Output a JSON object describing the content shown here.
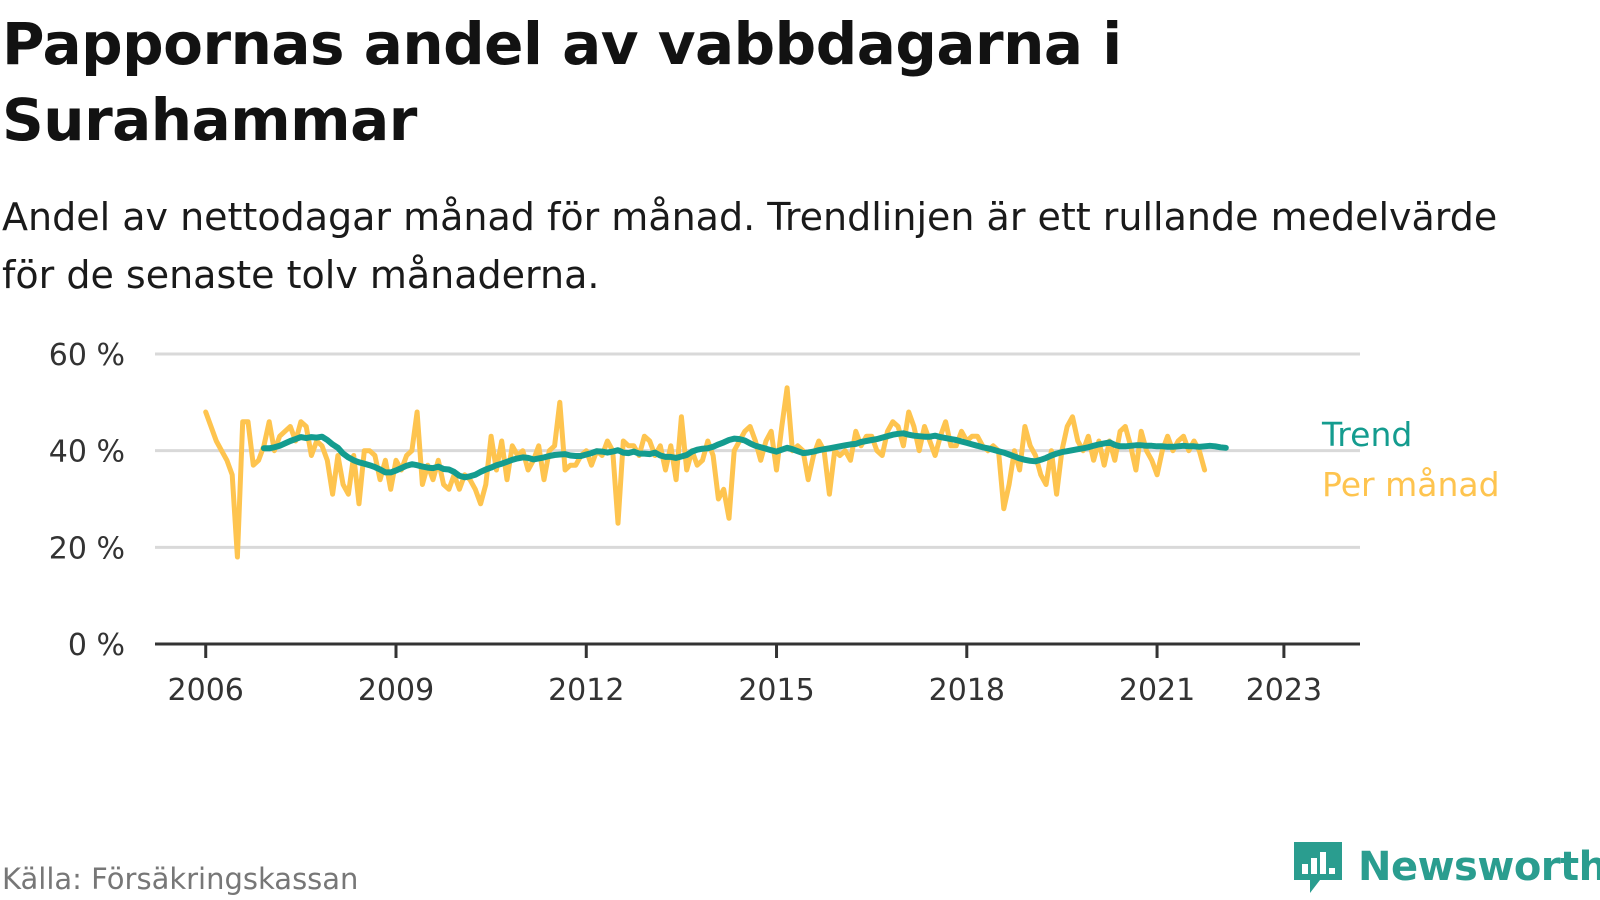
{
  "title": "Pappornas andel av vabbdagarna i Surahammar",
  "subtitle": "Andel av nettodagar månad för månad. Trendlinjen är ett rullande medelvärde för de senaste tolv månaderna.",
  "source": "Källa: Försäkringskassan",
  "brand": {
    "name": "Newsworthy",
    "icon": "newsworthy-logo-icon"
  },
  "colors": {
    "trend": "#149c8f",
    "monthly": "#fec44f",
    "grid": "#d9d9d9",
    "axis": "#333333"
  },
  "chart_data": {
    "type": "line",
    "title": "Pappornas andel av vabbdagarna i Surahammar",
    "xlabel": "",
    "ylabel": "",
    "ylim": [
      0,
      60
    ],
    "xlim": [
      2005.2,
      2024.2
    ],
    "yticks": [
      0,
      20,
      40,
      60
    ],
    "ytick_labels": [
      "0 %",
      "20 %",
      "40 %",
      "60 %"
    ],
    "xticks": [
      2006,
      2009,
      2012,
      2015,
      2018,
      2021,
      2023
    ],
    "xtick_labels": [
      "2006",
      "2009",
      "2012",
      "2015",
      "2018",
      "2021",
      "2023"
    ],
    "grid": true,
    "legend": "inline-right",
    "x_start": "2006-01",
    "series": [
      {
        "name": "Per månad",
        "start": "2006-01",
        "values": [
          48,
          45,
          42,
          40,
          38,
          35,
          18,
          46,
          46,
          37,
          38,
          41,
          46,
          40,
          43,
          44,
          45,
          42,
          46,
          45,
          39,
          42,
          41,
          38,
          31,
          39,
          33,
          31,
          39,
          29,
          40,
          40,
          39,
          34,
          38,
          32,
          38,
          36,
          39,
          40,
          48,
          33,
          37,
          34,
          38,
          33,
          32,
          35,
          32,
          35,
          34,
          32,
          29,
          33,
          43,
          36,
          42,
          34,
          41,
          39,
          40,
          36,
          38,
          41,
          34,
          40,
          41,
          50,
          36,
          37,
          37,
          39,
          40,
          37,
          40,
          39,
          42,
          40,
          25,
          42,
          41,
          41,
          39,
          43,
          42,
          39,
          41,
          36,
          41,
          34,
          47,
          36,
          40,
          37,
          38,
          42,
          39,
          30,
          32,
          26,
          40,
          42,
          44,
          45,
          42,
          38,
          42,
          44,
          36,
          45,
          53,
          40,
          41,
          40,
          34,
          39,
          42,
          40,
          31,
          40,
          39,
          40,
          38,
          44,
          41,
          43,
          43,
          40,
          39,
          44,
          46,
          45,
          41,
          48,
          45,
          40,
          45,
          42,
          39,
          43,
          46,
          41,
          41,
          44,
          42,
          43,
          43,
          41,
          40,
          41,
          40,
          28,
          33,
          40,
          36,
          45,
          41,
          39,
          35,
          33,
          40,
          31,
          40,
          45,
          47,
          42,
          40,
          43,
          38,
          42,
          37,
          42,
          38,
          44,
          45,
          41,
          36,
          44,
          40,
          38,
          35,
          40,
          43,
          40,
          42,
          43,
          40,
          42,
          40,
          36
        ],
        "color": "#fec44f"
      },
      {
        "name": "Trend",
        "start": "2006-12",
        "values": [
          40.5,
          40.5,
          40.7,
          41.0,
          41.5,
          42.0,
          42.4,
          42.8,
          42.6,
          42.8,
          42.7,
          42.9,
          42.2,
          41.3,
          40.6,
          39.4,
          38.6,
          38.0,
          37.6,
          37.3,
          37.0,
          36.6,
          36.1,
          35.5,
          35.5,
          35.9,
          36.4,
          36.9,
          37.2,
          37.0,
          36.7,
          36.5,
          36.4,
          36.7,
          36.2,
          36.1,
          35.6,
          34.8,
          34.5,
          34.7,
          35.0,
          35.6,
          36.1,
          36.5,
          37.0,
          37.3,
          37.7,
          38.1,
          38.4,
          38.6,
          38.5,
          38.2,
          38.4,
          38.6,
          38.9,
          39.1,
          39.2,
          39.3,
          39.0,
          38.9,
          38.9,
          39.2,
          39.5,
          39.9,
          39.8,
          39.6,
          39.8,
          40.1,
          39.6,
          39.5,
          39.8,
          39.4,
          39.4,
          39.3,
          39.6,
          39.0,
          38.7,
          38.7,
          38.5,
          38.8,
          39.1,
          39.8,
          40.2,
          40.4,
          40.5,
          40.8,
          41.3,
          41.7,
          42.2,
          42.5,
          42.4,
          42.1,
          41.5,
          41.0,
          40.7,
          40.4,
          40.1,
          39.8,
          40.2,
          40.6,
          40.3,
          39.9,
          39.5,
          39.6,
          39.8,
          40.1,
          40.3,
          40.5,
          40.7,
          40.9,
          41.1,
          41.3,
          41.4,
          41.8,
          42.0,
          42.2,
          42.4,
          42.7,
          43.0,
          43.3,
          43.5,
          43.6,
          43.3,
          43.1,
          43.0,
          42.9,
          42.9,
          43.1,
          42.8,
          42.6,
          42.4,
          42.2,
          41.9,
          41.6,
          41.3,
          41.0,
          40.7,
          40.5,
          40.2,
          39.9,
          39.6,
          39.2,
          38.8,
          38.4,
          38.1,
          37.9,
          37.8,
          38.1,
          38.5,
          39.0,
          39.4,
          39.7,
          39.9,
          40.1,
          40.3,
          40.5,
          40.7,
          41.0,
          41.3,
          41.5,
          41.7,
          41.2,
          40.9,
          40.9,
          41.0,
          41.1,
          41.1,
          41.0,
          41.0,
          40.9,
          40.9,
          40.8,
          40.8,
          40.9,
          41.0,
          40.9,
          40.9,
          40.8,
          40.9,
          41.0,
          40.9,
          40.7,
          40.6
        ],
        "color": "#149c8f"
      }
    ]
  }
}
